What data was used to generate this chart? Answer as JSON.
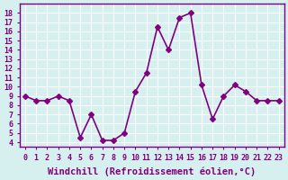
{
  "x": [
    0,
    1,
    2,
    3,
    4,
    5,
    6,
    7,
    8,
    9,
    10,
    11,
    12,
    13,
    14,
    15,
    16,
    17,
    18,
    19,
    20,
    21,
    22,
    23
  ],
  "y": [
    9,
    8.5,
    8.5,
    9,
    8.5,
    4.5,
    7,
    4.2,
    4.2,
    5,
    9.5,
    11.5,
    16.5,
    14,
    17.5,
    18,
    10.2,
    6.5,
    9,
    10.2,
    9.5,
    8.5,
    8.5,
    8.5
  ],
  "line_color": "#800080",
  "marker": "D",
  "marker_size": 3,
  "line_width": 1.2,
  "xlabel": "Windchill (Refroidissement éolien,°C)",
  "xlabel_fontsize": 7.5,
  "ylim": [
    3.5,
    19
  ],
  "xlim": [
    -0.5,
    23.5
  ],
  "yticks": [
    4,
    5,
    6,
    7,
    8,
    9,
    10,
    11,
    12,
    13,
    14,
    15,
    16,
    17,
    18
  ],
  "xticks": [
    0,
    1,
    2,
    3,
    4,
    5,
    6,
    7,
    8,
    9,
    10,
    11,
    12,
    13,
    14,
    15,
    16,
    17,
    18,
    19,
    20,
    21,
    22,
    23
  ],
  "xtick_labels": [
    "0",
    "1",
    "2",
    "3",
    "4",
    "5",
    "6",
    "7",
    "8",
    "9",
    "10",
    "11",
    "12",
    "13",
    "14",
    "15",
    "16",
    "17",
    "18",
    "19",
    "20",
    "21",
    "22",
    "23"
  ],
  "background_color": "#d6f0f0",
  "grid_color": "#ffffff",
  "tick_fontsize": 6,
  "spine_color": "#800080"
}
